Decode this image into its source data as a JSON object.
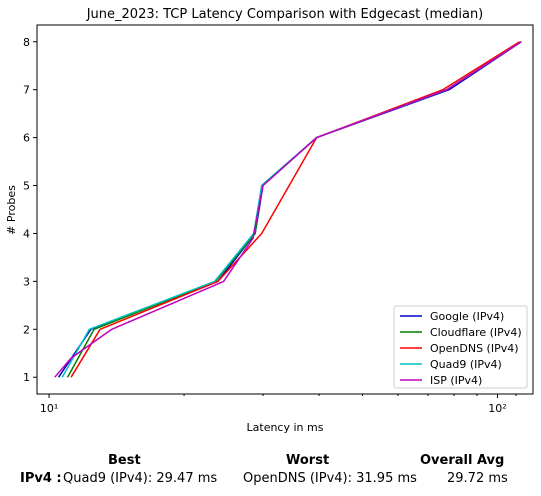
{
  "chart_data": {
    "type": "line",
    "title": "June_2023: TCP Latency Comparison with Edgecast (median)",
    "xlabel": "Latency in ms",
    "ylabel": "# Probes",
    "xscale": "log",
    "xlim": [
      9.4,
      120
    ],
    "ylim": [
      0.65,
      8.35
    ],
    "xticks": [
      {
        "value": 10,
        "label": "10¹"
      },
      {
        "value": 100,
        "label": "10²"
      }
    ],
    "yticks": [
      1,
      2,
      3,
      4,
      5,
      6,
      7,
      8
    ],
    "grid": false,
    "legend": "bottom-right",
    "series": [
      {
        "name": "Google (IPv4)",
        "color": "#0000cc",
        "points": [
          [
            10.5,
            1
          ],
          [
            12.4,
            2
          ],
          [
            23.8,
            3
          ],
          [
            28.8,
            4
          ],
          [
            30.0,
            5
          ],
          [
            39.5,
            6
          ],
          [
            78,
            7
          ],
          [
            113,
            8
          ]
        ]
      },
      {
        "name": "Cloudflare (IPv4)",
        "color": "#008000",
        "points": [
          [
            11.0,
            1
          ],
          [
            12.6,
            2
          ],
          [
            23.5,
            3
          ],
          [
            28.8,
            4
          ],
          [
            29.8,
            5
          ],
          [
            39.5,
            6
          ],
          [
            77,
            7
          ],
          [
            113,
            8
          ]
        ]
      },
      {
        "name": "OpenDNS (IPv4)",
        "color": "#ff0000",
        "points": [
          [
            11.2,
            1
          ],
          [
            13.0,
            2
          ],
          [
            23.8,
            3
          ],
          [
            29.8,
            4
          ],
          [
            39.5,
            6
          ],
          [
            75.5,
            7
          ],
          [
            112,
            8
          ]
        ]
      },
      {
        "name": "Quad9 (IPv4)",
        "color": "#00c0c0",
        "points": [
          [
            10.7,
            1
          ],
          [
            12.3,
            2
          ],
          [
            23.4,
            3
          ],
          [
            28.6,
            4
          ],
          [
            29.8,
            5
          ],
          [
            39.5,
            6
          ],
          [
            77,
            7
          ],
          [
            113,
            8
          ]
        ]
      },
      {
        "name": "ISP (IPv4)",
        "color": "#c000c0",
        "points": [
          [
            10.3,
            1
          ],
          [
            11.2,
            1.4
          ],
          [
            12.0,
            1.6
          ],
          [
            13.8,
            2
          ],
          [
            24.5,
            3
          ],
          [
            28.5,
            3.9
          ],
          [
            30.0,
            5
          ],
          [
            39.5,
            6
          ],
          [
            77,
            7
          ],
          [
            113,
            8
          ]
        ]
      }
    ]
  },
  "summary": {
    "best_header": "Best",
    "worst_header": "Worst",
    "avg_header": "Overall Avg",
    "row_label": "IPv4 :",
    "best_value": "Quad9 (IPv4): 29.47 ms",
    "worst_value": "OpenDNS (IPv4): 31.95 ms",
    "avg_value": "29.72 ms"
  }
}
